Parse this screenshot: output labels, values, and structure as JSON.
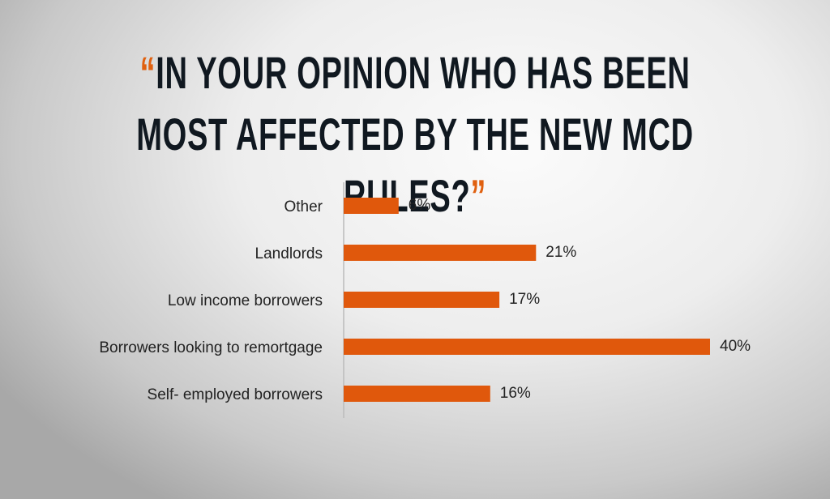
{
  "chart_data": {
    "type": "bar",
    "orientation": "horizontal",
    "open_quote": "“",
    "title": "IN YOUR OPINION WHO HAS BEEN MOST AFFECTED BY THE NEW MCD RULES?",
    "close_quote": "”",
    "categories": [
      "Other",
      "Landlords",
      "Low income borrowers",
      "Borrowers looking to remortgage",
      "Self- employed borrowers"
    ],
    "values": [
      6,
      21,
      17,
      40,
      16
    ],
    "value_labels": [
      "6%",
      "21%",
      "17%",
      "40%",
      "16%"
    ],
    "color": "#e0580c"
  }
}
